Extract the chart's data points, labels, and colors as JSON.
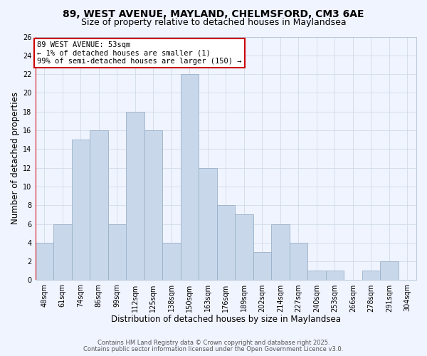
{
  "title": "89, WEST AVENUE, MAYLAND, CHELMSFORD, CM3 6AE",
  "subtitle": "Size of property relative to detached houses in Maylandsea",
  "xlabel": "Distribution of detached houses by size in Maylandsea",
  "ylabel": "Number of detached properties",
  "bin_labels": [
    "48sqm",
    "61sqm",
    "74sqm",
    "86sqm",
    "99sqm",
    "112sqm",
    "125sqm",
    "138sqm",
    "150sqm",
    "163sqm",
    "176sqm",
    "189sqm",
    "202sqm",
    "214sqm",
    "227sqm",
    "240sqm",
    "253sqm",
    "266sqm",
    "278sqm",
    "291sqm",
    "304sqm"
  ],
  "bar_heights": [
    4,
    6,
    15,
    16,
    6,
    18,
    16,
    4,
    22,
    12,
    8,
    7,
    3,
    6,
    4,
    1,
    1,
    0,
    1,
    2,
    0
  ],
  "bar_color": "#c8d8ea",
  "bar_edge_color": "#9ab0c8",
  "highlight_line_color": "#cc0000",
  "ylim": [
    0,
    26
  ],
  "yticks": [
    0,
    2,
    4,
    6,
    8,
    10,
    12,
    14,
    16,
    18,
    20,
    22,
    24,
    26
  ],
  "annotation_title": "89 WEST AVENUE: 53sqm",
  "annotation_line1": "← 1% of detached houses are smaller (1)",
  "annotation_line2": "99% of semi-detached houses are larger (150) →",
  "annotation_box_color": "#ffffff",
  "annotation_box_edge": "#cc0000",
  "grid_color": "#d0dae8",
  "footer1": "Contains HM Land Registry data © Crown copyright and database right 2025.",
  "footer2": "Contains public sector information licensed under the Open Government Licence v3.0.",
  "bg_color": "#f0f4ff",
  "title_fontsize": 10,
  "subtitle_fontsize": 9,
  "axis_label_fontsize": 8.5,
  "tick_fontsize": 7,
  "ann_fontsize": 7.5,
  "footer_fontsize": 6
}
